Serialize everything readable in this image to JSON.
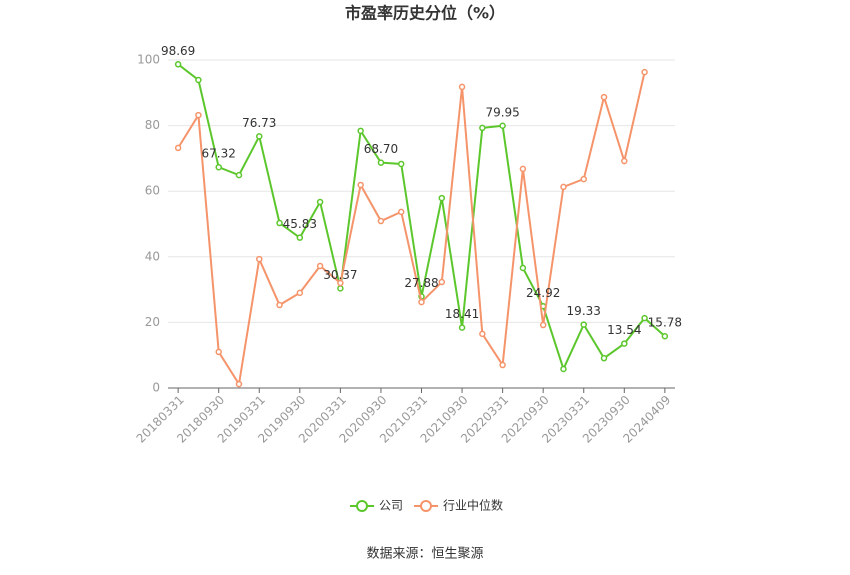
{
  "chart_data": {
    "type": "line",
    "title": "市盈率历史分位（%）",
    "categories": [
      "20180331",
      null,
      "20180930",
      null,
      "20190331",
      null,
      "20190930",
      null,
      "20200331",
      null,
      "20200930",
      null,
      "20210331",
      null,
      "20210930",
      null,
      "20220331",
      null,
      "20220930",
      null,
      "20230331",
      null,
      "20230930",
      null,
      "20240409"
    ],
    "series": [
      {
        "name": "公司",
        "color": "#5cc72c",
        "values": [
          98.69,
          93.9,
          67.32,
          64.9,
          76.73,
          50.3,
          45.83,
          56.7,
          30.37,
          78.4,
          68.7,
          68.3,
          27.88,
          57.9,
          18.41,
          79.3,
          79.95,
          36.6,
          24.92,
          5.8,
          19.33,
          9.1,
          13.54,
          21.3,
          15.78
        ],
        "value_labels": [
          "98.69",
          null,
          "67.32",
          null,
          "76.73",
          null,
          "45.83",
          null,
          "30.37",
          null,
          "68.70",
          null,
          "27.88",
          null,
          "18.41",
          null,
          "79.95",
          null,
          "24.92",
          null,
          "19.33",
          null,
          "13.54",
          null,
          "15.78"
        ]
      },
      {
        "name": "行业中位数",
        "color": "#f5946a",
        "values": [
          73.2,
          83.2,
          11.0,
          1.2,
          39.3,
          25.3,
          29.0,
          37.2,
          32.0,
          61.9,
          50.9,
          53.7,
          26.2,
          32.3,
          91.8,
          16.5,
          7.0,
          66.8,
          19.2,
          61.3,
          63.7,
          88.7,
          69.2,
          96.3,
          null
        ]
      }
    ],
    "ylim": [
      0,
      100
    ],
    "yticks": [
      0,
      20,
      40,
      60,
      80,
      100
    ],
    "grid": true,
    "legend": "bottom",
    "source": "数据来源：恒生聚源"
  }
}
